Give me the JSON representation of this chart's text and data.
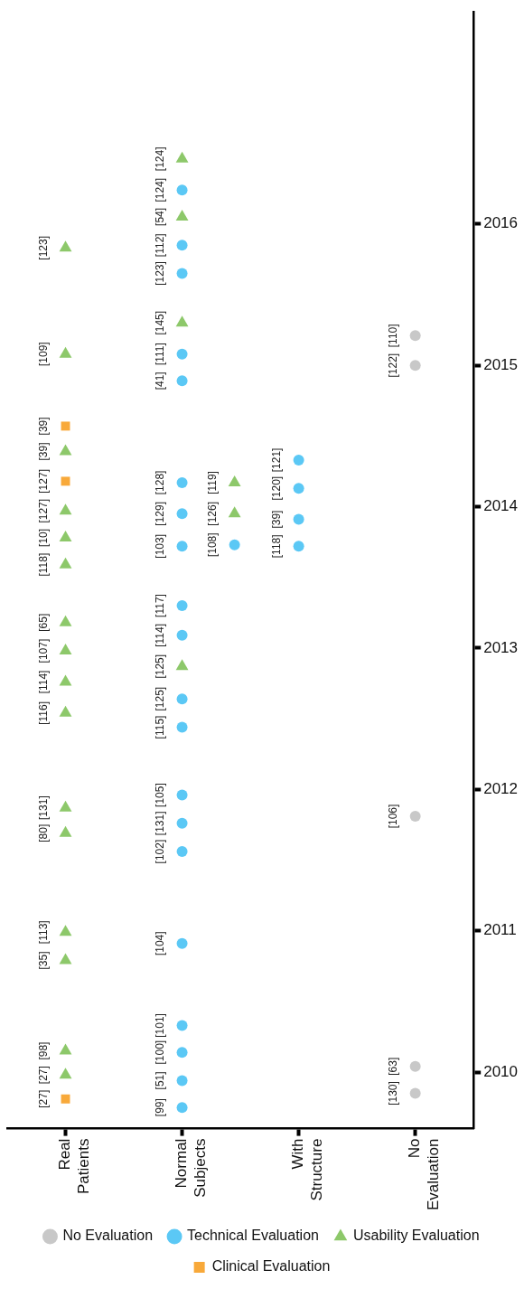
{
  "chart_data": {
    "type": "scatter",
    "categories": [
      "Real Patients",
      "Normal Subjects",
      "With Structure",
      "No Evaluation"
    ],
    "ylim": [
      2009.6,
      2017.5
    ],
    "yticks": [
      2010,
      2011,
      2012,
      2013,
      2014,
      2015,
      2016
    ],
    "legend": "bottom",
    "series": [
      {
        "name": "No Evaluation",
        "color": "#c8c8c8",
        "marker": "circle",
        "x": [
          "No Evaluation",
          "No Evaluation",
          "No Evaluation",
          "No Evaluation",
          "No Evaluation"
        ],
        "values": [
          2009.85,
          2010.04,
          2011.81,
          2015.0,
          2015.21
        ]
      },
      {
        "name": "Technical Evaluation",
        "color": "#5bc8f5",
        "marker": "circle",
        "x": [
          "Normal Subjects",
          "Normal Subjects",
          "Normal Subjects",
          "Normal Subjects",
          "Normal Subjects",
          "Normal Subjects",
          "Normal Subjects",
          "Normal Subjects",
          "Normal Subjects",
          "Normal Subjects",
          "Normal Subjects",
          "Normal Subjects",
          "Normal Subjects",
          "Normal Subjects",
          "Normal Subjects",
          "Normal Subjects",
          "Normal Subjects",
          "Normal Subjects",
          "Normal Subjects",
          "Normal Subjects",
          "Normal Subjects",
          "With Structure",
          "With Structure",
          "With Structure",
          "With Structure"
        ],
        "values": [
          2009.75,
          2009.94,
          2010.14,
          2010.33,
          2010.91,
          2011.56,
          2011.76,
          2011.96,
          2012.44,
          2012.64,
          2013.09,
          2013.3,
          2013.72,
          2013.95,
          2014.17,
          2013.73,
          2014.89,
          2015.08,
          2015.65,
          2015.85,
          2016.24,
          2013.72,
          2013.91,
          2014.13,
          2014.33
        ]
      },
      {
        "name": "Usability Evaluation",
        "color": "#8dc86a",
        "marker": "triangle",
        "x": [
          "Real Patients",
          "Real Patients",
          "Real Patients",
          "Real Patients",
          "Real Patients",
          "Real Patients",
          "Real Patients",
          "Real Patients",
          "Real Patients",
          "Real Patients",
          "Real Patients",
          "Real Patients",
          "Real Patients",
          "Real Patients",
          "Real Patients",
          "Real Patients",
          "Normal Subjects",
          "Normal Subjects",
          "Normal Subjects",
          "Normal Subjects",
          "Normal Subjects",
          "Normal Subjects"
        ],
        "values": [
          2009.98,
          2010.15,
          2010.79,
          2010.99,
          2011.69,
          2011.87,
          2012.54,
          2012.76,
          2012.98,
          2013.18,
          2013.59,
          2013.78,
          2013.97,
          2014.39,
          2015.08,
          2015.83,
          2012.87,
          2013.95,
          2014.17,
          2015.3,
          2016.05,
          2016.46
        ]
      },
      {
        "name": "Clinical Evaluation",
        "color": "#f8a93a",
        "marker": "square",
        "x": [
          "Real Patients",
          "Real Patients",
          "Real Patients"
        ],
        "values": [
          2009.81,
          2014.18,
          2014.57
        ]
      }
    ],
    "annotations": [
      {
        "text": "[130]",
        "x": "No Evaluation",
        "y": 2009.85
      },
      {
        "text": "[63]",
        "x": "No Evaluation",
        "y": 2010.04
      },
      {
        "text": "[106]",
        "x": "No Evaluation",
        "y": 2011.81
      },
      {
        "text": "[122]",
        "x": "No Evaluation",
        "y": 2015.0
      },
      {
        "text": "[110]",
        "x": "No Evaluation",
        "y": 2015.21
      },
      {
        "text": "[99]",
        "x": "Normal Subjects",
        "y": 2009.75
      },
      {
        "text": "[51]",
        "x": "Normal Subjects",
        "y": 2009.94
      },
      {
        "text": "[100]",
        "x": "Normal Subjects",
        "y": 2010.14
      },
      {
        "text": "[101]",
        "x": "Normal Subjects",
        "y": 2010.33
      },
      {
        "text": "[104]",
        "x": "Normal Subjects",
        "y": 2010.91
      },
      {
        "text": "[102]",
        "x": "Normal Subjects",
        "y": 2011.56
      },
      {
        "text": "[131]",
        "x": "Normal Subjects",
        "y": 2011.76
      },
      {
        "text": "[105]",
        "x": "Normal Subjects",
        "y": 2011.96
      },
      {
        "text": "[115]",
        "x": "Normal Subjects",
        "y": 2012.44
      },
      {
        "text": "[125]",
        "x": "Normal Subjects",
        "y": 2012.64
      },
      {
        "text": "[114]",
        "x": "Normal Subjects",
        "y": 2013.09
      },
      {
        "text": "[117]",
        "x": "Normal Subjects",
        "y": 2013.3
      },
      {
        "text": "[103]",
        "x": "Normal Subjects",
        "y": 2013.72
      },
      {
        "text": "[129]",
        "x": "Normal Subjects",
        "y": 2013.95
      },
      {
        "text": "[128]",
        "x": "Normal Subjects",
        "y": 2014.17
      },
      {
        "text": "[108]",
        "x": "Normal Subjects",
        "y": 2013.73
      },
      {
        "text": "[41]",
        "x": "Normal Subjects",
        "y": 2014.89
      },
      {
        "text": "[111]",
        "x": "Normal Subjects",
        "y": 2015.08
      },
      {
        "text": "[123]",
        "x": "Normal Subjects",
        "y": 2015.65
      },
      {
        "text": "[112]",
        "x": "Normal Subjects",
        "y": 2015.85
      },
      {
        "text": "[124]",
        "x": "Normal Subjects",
        "y": 2016.24
      },
      {
        "text": "[118]",
        "x": "With Structure",
        "y": 2013.72
      },
      {
        "text": "[39]",
        "x": "With Structure",
        "y": 2013.91
      },
      {
        "text": "[120]",
        "x": "With Structure",
        "y": 2014.13
      },
      {
        "text": "[121]",
        "x": "With Structure",
        "y": 2014.33
      },
      {
        "text": "[27]",
        "x": "Real Patients",
        "y": 2009.98
      },
      {
        "text": "[98]",
        "x": "Real Patients",
        "y": 2010.15
      },
      {
        "text": "[35]",
        "x": "Real Patients",
        "y": 2010.79
      },
      {
        "text": "[113]",
        "x": "Real Patients",
        "y": 2010.99
      },
      {
        "text": "[80]",
        "x": "Real Patients",
        "y": 2011.69
      },
      {
        "text": "[131]",
        "x": "Real Patients",
        "y": 2011.87
      },
      {
        "text": "[116]",
        "x": "Real Patients",
        "y": 2012.54
      },
      {
        "text": "[114]",
        "x": "Real Patients",
        "y": 2012.76
      },
      {
        "text": "[107]",
        "x": "Real Patients",
        "y": 2012.98
      },
      {
        "text": "[65]",
        "x": "Real Patients",
        "y": 2013.18
      },
      {
        "text": "[118]",
        "x": "Real Patients",
        "y": 2013.59
      },
      {
        "text": "[10]",
        "x": "Real Patients",
        "y": 2013.78
      },
      {
        "text": "[127]",
        "x": "Real Patients",
        "y": 2013.97
      },
      {
        "text": "[39]",
        "x": "Real Patients",
        "y": 2014.39
      },
      {
        "text": "[109]",
        "x": "Real Patients",
        "y": 2015.08
      },
      {
        "text": "[123]",
        "x": "Real Patients",
        "y": 2015.83
      },
      {
        "text": "[125]",
        "x": "Normal Subjects",
        "y": 2012.87
      },
      {
        "text": "[126]",
        "x": "Normal Subjects",
        "y": 2013.95
      },
      {
        "text": "[119]",
        "x": "Normal Subjects",
        "y": 2014.17
      },
      {
        "text": "[145]",
        "x": "Normal Subjects",
        "y": 2015.3
      },
      {
        "text": "[54]",
        "x": "Normal Subjects",
        "y": 2016.05
      },
      {
        "text": "[124]",
        "x": "Normal Subjects",
        "y": 2016.46
      },
      {
        "text": "[27]",
        "x": "Real Patients",
        "y": 2009.81
      },
      {
        "text": "[127]",
        "x": "Real Patients",
        "y": 2014.18
      },
      {
        "text": "[39]",
        "x": "Real Patients",
        "y": 2014.57
      }
    ]
  }
}
